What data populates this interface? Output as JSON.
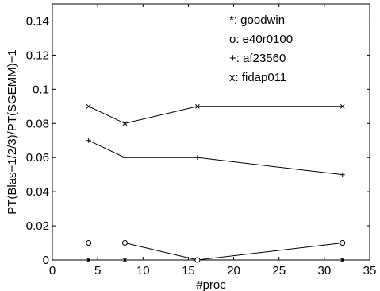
{
  "chart_data": {
    "type": "line",
    "xlabel": "#proc",
    "ylabel": "PT(Blas−1/2/3)/PT(SGEMM)−1",
    "xlim": [
      0,
      35
    ],
    "ylim": [
      0,
      0.15
    ],
    "xticks": [
      "0",
      "5",
      "10",
      "15",
      "20",
      "25",
      "30",
      "35"
    ],
    "yticks": [
      "0",
      "0.02",
      "0.04",
      "0.06",
      "0.08",
      "0.1",
      "0.12",
      "0.14"
    ],
    "xtick_values": [
      0,
      5,
      10,
      15,
      20,
      25,
      30,
      35
    ],
    "ytick_values": [
      0,
      0.02,
      0.04,
      0.06,
      0.08,
      0.1,
      0.12,
      0.14
    ],
    "grid": false,
    "legend_position": "top-right",
    "legend": [
      "*: goodwin",
      "o: e40r0100",
      "+: af23560",
      "x: fidap011"
    ],
    "series": [
      {
        "name": "goodwin",
        "marker": "star",
        "x": [
          4,
          8,
          16,
          32
        ],
        "y": [
          0,
          0,
          0,
          0
        ]
      },
      {
        "name": "e40r0100",
        "marker": "circle",
        "x": [
          4,
          8,
          16,
          32
        ],
        "y": [
          0.01,
          0.01,
          0,
          0.01
        ]
      },
      {
        "name": "af23560",
        "marker": "plus",
        "x": [
          4,
          8,
          16,
          32
        ],
        "y": [
          0.07,
          0.06,
          0.06,
          0.05
        ]
      },
      {
        "name": "fidap011",
        "marker": "x",
        "x": [
          4,
          8,
          16,
          32
        ],
        "y": [
          0.09,
          0.08,
          0.09,
          0.09
        ]
      }
    ]
  }
}
